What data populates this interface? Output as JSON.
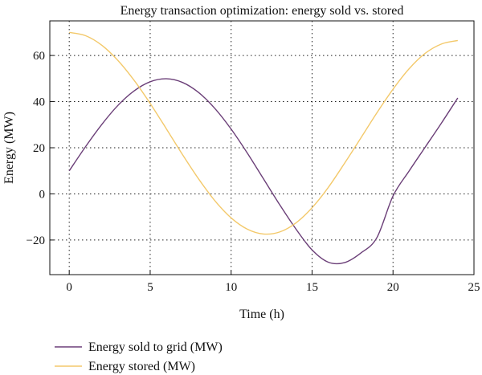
{
  "chart_data": {
    "type": "line",
    "title": "Energy transaction optimization: energy sold vs. stored",
    "xlabel": "Time (h)",
    "ylabel": "Energy (MW)",
    "xlim": [
      -1.2,
      25
    ],
    "ylim": [
      -35,
      75
    ],
    "x_ticks": [
      0,
      5,
      10,
      15,
      20,
      25
    ],
    "y_ticks": [
      -20,
      0,
      20,
      40,
      60
    ],
    "x_tick_labels": [
      "0",
      "5",
      "10",
      "15",
      "20",
      "25"
    ],
    "y_tick_labels": [
      "−20",
      "0",
      "20",
      "40",
      "60"
    ],
    "grid": true,
    "grid_style": "dotted",
    "legend_position": "bottom-left, below plot",
    "x": [
      0,
      1,
      2,
      3,
      4,
      5,
      6,
      7,
      8,
      9,
      10,
      11,
      12,
      13,
      14,
      15,
      16,
      17,
      18,
      19,
      20,
      21,
      22,
      23,
      24
    ],
    "series": [
      {
        "name": "Energy sold to grid (MW)",
        "color": "#6b3f78",
        "values": [
          10.0,
          20.4,
          30.0,
          38.3,
          44.6,
          48.6,
          49.9,
          48.3,
          43.9,
          37.0,
          28.1,
          17.7,
          6.5,
          -4.7,
          -15.2,
          -24.3,
          -29.6,
          -29.8,
          -25.7,
          -19.0,
          -0.9,
          10.0,
          20.4,
          30.8,
          41.6
        ]
      },
      {
        "name": "Energy stored (MW)",
        "color": "#f3c96b",
        "values": [
          70.0,
          68.6,
          64.5,
          57.9,
          49.3,
          39.2,
          28.2,
          17.0,
          6.4,
          -3.0,
          -10.4,
          -15.3,
          -17.4,
          -16.5,
          -12.6,
          -6.0,
          2.8,
          13.2,
          24.1,
          35.1,
          45.4,
          54.3,
          61.0,
          65.0,
          66.5
        ]
      }
    ]
  }
}
